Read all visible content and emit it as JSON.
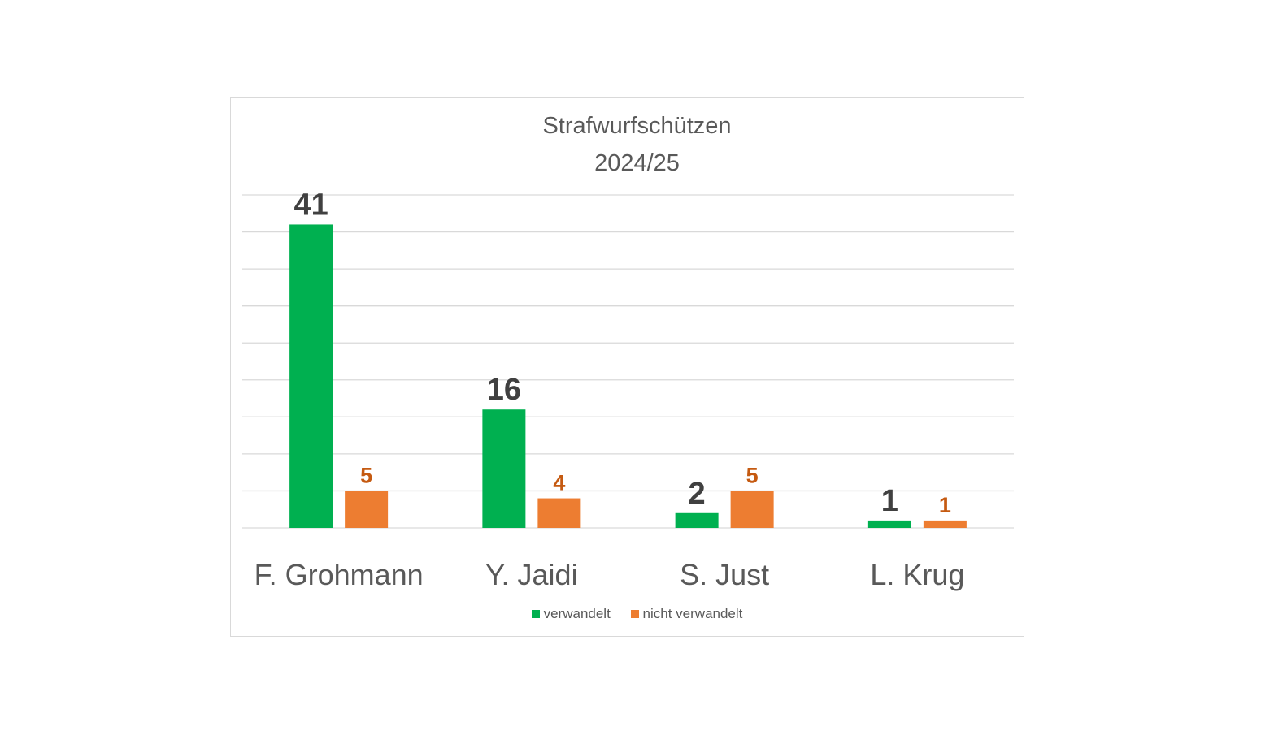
{
  "chart_data": {
    "type": "bar",
    "title": "Strafwurfschützen",
    "subtitle": "2024/25",
    "categories": [
      "F. Grohmann",
      "Y. Jaidi",
      "S. Just",
      "L. Krug"
    ],
    "series": [
      {
        "name": "verwandelt",
        "values": [
          41,
          16,
          2,
          1
        ],
        "color": "#00b050"
      },
      {
        "name": "nicht verwandelt",
        "values": [
          5,
          4,
          5,
          1
        ],
        "color": "#ed7d31"
      }
    ],
    "ylim": [
      0,
      45
    ],
    "grid": true,
    "legend_position": "bottom"
  }
}
